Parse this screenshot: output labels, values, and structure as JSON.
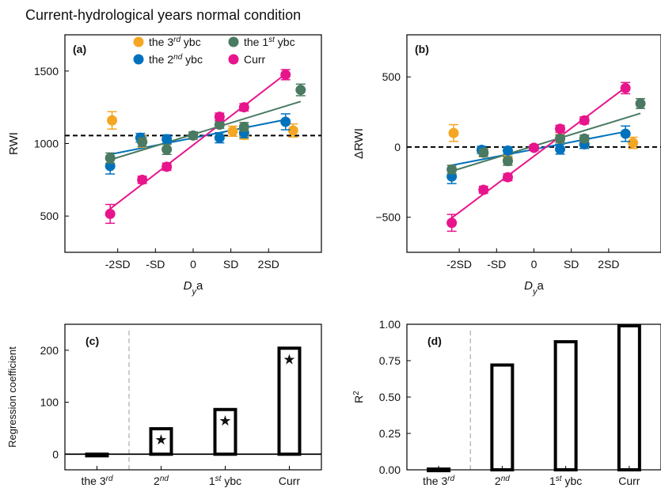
{
  "figure_title": "Current-hydrological years normal condition",
  "chart_data": [
    {
      "id": "a",
      "type": "scatter",
      "panel_label": "(a)",
      "xlabel_italic": "D",
      "xlabel_sub": "y",
      "xlabel_rest": "a",
      "ylabel": "RWI",
      "ylim": [
        250,
        1750
      ],
      "xlim": [
        -3.4,
        3.4
      ],
      "yticks": [
        500,
        1000,
        1500
      ],
      "ytick_labels": [
        "500",
        "1000",
        "1500"
      ],
      "xticks": [
        -2,
        -1,
        0,
        1,
        2
      ],
      "xtick_labels": [
        "-2SD",
        "-SD",
        "0",
        "SD",
        "2SD"
      ],
      "baseline": 1055,
      "legend": {
        "placement": "top",
        "entries": [
          {
            "series": "3rd",
            "base": "the 3",
            "sup": "rd",
            "rest": " ybc"
          },
          {
            "series": "1st",
            "base": "the 1",
            "sup": "st",
            "rest": " ybc"
          },
          {
            "series": "2nd",
            "base": "the 2",
            "sup": "nd",
            "rest": " ybc"
          },
          {
            "series": "curr",
            "base": "Curr",
            "sup": "",
            "rest": ""
          }
        ]
      },
      "series": [
        {
          "key": "3rd",
          "color": "#F5A623",
          "points": [
            [
              -2.15,
              1160,
              60
            ],
            [
              -1.35,
              1015,
              40
            ],
            [
              -0.7,
              960,
              35
            ],
            [
              1.05,
              1085,
              35
            ],
            [
              1.35,
              1060,
              30
            ],
            [
              2.65,
              1090,
              45
            ]
          ],
          "fit": null
        },
        {
          "key": "2nd",
          "color": "#0072BD",
          "points": [
            [
              -2.2,
              845,
              55
            ],
            [
              -1.4,
              1040,
              30
            ],
            [
              -0.7,
              1030,
              30
            ],
            [
              0.7,
              1040,
              35
            ],
            [
              1.35,
              1075,
              35
            ],
            [
              2.45,
              1150,
              55
            ]
          ],
          "fit": [
            [
              -2.3,
              920
            ],
            [
              2.45,
              1165
            ]
          ]
        },
        {
          "key": "1st",
          "color": "#4A7A62",
          "points": [
            [
              -2.2,
              900,
              35
            ],
            [
              -1.35,
              1010,
              30
            ],
            [
              -0.7,
              960,
              35
            ],
            [
              0,
              1055,
              25
            ],
            [
              0.7,
              1130,
              25
            ],
            [
              1.35,
              1115,
              30
            ],
            [
              2.85,
              1370,
              40
            ]
          ],
          "fit": [
            [
              -2.3,
              880
            ],
            [
              2.85,
              1290
            ]
          ]
        },
        {
          "key": "curr",
          "color": "#E8148C",
          "points": [
            [
              -2.2,
              515,
              65
            ],
            [
              -1.35,
              750,
              25
            ],
            [
              -0.7,
              840,
              25
            ],
            [
              0.7,
              1185,
              25
            ],
            [
              1.35,
              1250,
              25
            ],
            [
              2.45,
              1475,
              35
            ]
          ],
          "fit": [
            [
              -2.3,
              530
            ],
            [
              2.45,
              1480
            ]
          ]
        }
      ]
    },
    {
      "id": "b",
      "type": "scatter",
      "panel_label": "(b)",
      "xlabel_italic": "D",
      "xlabel_sub": "y",
      "xlabel_rest": "a",
      "ylabel": "ΔRWI",
      "ylim": [
        -750,
        800
      ],
      "xlim": [
        -3.4,
        3.4
      ],
      "yticks": [
        -500,
        0,
        500
      ],
      "ytick_labels": [
        "−500",
        "0",
        "500"
      ],
      "xticks": [
        -2,
        -1,
        0,
        1,
        2
      ],
      "xtick_labels": [
        "-2SD",
        "-SD",
        "0",
        "SD",
        "2SD"
      ],
      "baseline": 0,
      "series": [
        {
          "key": "3rd",
          "color": "#F5A623",
          "points": [
            [
              -2.15,
              100,
              60
            ],
            [
              -1.35,
              -40,
              30
            ],
            [
              -0.7,
              -90,
              35
            ],
            [
              0.7,
              60,
              30
            ],
            [
              1.35,
              20,
              30
            ],
            [
              2.65,
              30,
              40
            ]
          ],
          "fit": null
        },
        {
          "key": "2nd",
          "color": "#0072BD",
          "points": [
            [
              -2.2,
              -210,
              50
            ],
            [
              -1.4,
              -20,
              25
            ],
            [
              -0.7,
              -25,
              25
            ],
            [
              0.7,
              -15,
              35
            ],
            [
              1.35,
              20,
              30
            ],
            [
              2.45,
              95,
              55
            ]
          ],
          "fit": [
            [
              -2.3,
              -135
            ],
            [
              2.45,
              110
            ]
          ]
        },
        {
          "key": "1st",
          "color": "#4A7A62",
          "points": [
            [
              -2.2,
              -160,
              30
            ],
            [
              -1.35,
              -40,
              25
            ],
            [
              -0.7,
              -100,
              30
            ],
            [
              0,
              -5,
              20
            ],
            [
              0.7,
              60,
              25
            ],
            [
              1.35,
              60,
              25
            ],
            [
              2.85,
              310,
              35
            ]
          ],
          "fit": [
            [
              -2.3,
              -180
            ],
            [
              2.85,
              240
            ]
          ]
        },
        {
          "key": "curr",
          "color": "#E8148C",
          "points": [
            [
              -2.2,
              -540,
              60
            ],
            [
              -1.35,
              -305,
              25
            ],
            [
              -0.7,
              -215,
              25
            ],
            [
              0,
              -5,
              20
            ],
            [
              0.7,
              130,
              25
            ],
            [
              1.35,
              190,
              25
            ],
            [
              2.45,
              420,
              40
            ]
          ],
          "fit": [
            [
              -2.3,
              -525
            ],
            [
              2.45,
              425
            ]
          ]
        }
      ]
    },
    {
      "id": "c",
      "type": "bar",
      "panel_label": "(c)",
      "ylabel": "Regression coefficient",
      "ylim": [
        -30,
        250
      ],
      "yticks": [
        0,
        100,
        200
      ],
      "ytick_labels": [
        "0",
        "100",
        "200"
      ],
      "categories": [
        {
          "base": "the 3",
          "sup": "rd",
          "rest": ""
        },
        {
          "base": "",
          "sup": "nd",
          "rest": "",
          "pre": "2"
        },
        {
          "base": "1",
          "sup": "st",
          "rest": " ybc"
        },
        {
          "base": "Curr",
          "sup": "",
          "rest": ""
        }
      ],
      "values": [
        -2,
        49,
        86,
        204
      ],
      "significant": [
        false,
        true,
        true,
        true
      ],
      "star_values": [
        null,
        29,
        66,
        184
      ],
      "zero_line": true,
      "divider_after_index": 0
    },
    {
      "id": "d",
      "type": "bar",
      "panel_label": "(d)",
      "ylabel_base": "R",
      "ylabel_sup": "2",
      "ylim": [
        0,
        1.0
      ],
      "yticks": [
        0,
        0.25,
        0.5,
        0.75,
        1.0
      ],
      "ytick_labels": [
        "0.00",
        "0.25",
        "0.50",
        "0.75",
        "1.00"
      ],
      "categories": [
        {
          "base": "the 3",
          "sup": "rd",
          "rest": ""
        },
        {
          "base": "",
          "sup": "nd",
          "rest": "",
          "pre": "2"
        },
        {
          "base": "1",
          "sup": "st",
          "rest": " ybc"
        },
        {
          "base": "Curr",
          "sup": "",
          "rest": ""
        }
      ],
      "values": [
        0.005,
        0.72,
        0.88,
        0.99
      ],
      "divider_after_index": 0
    }
  ]
}
